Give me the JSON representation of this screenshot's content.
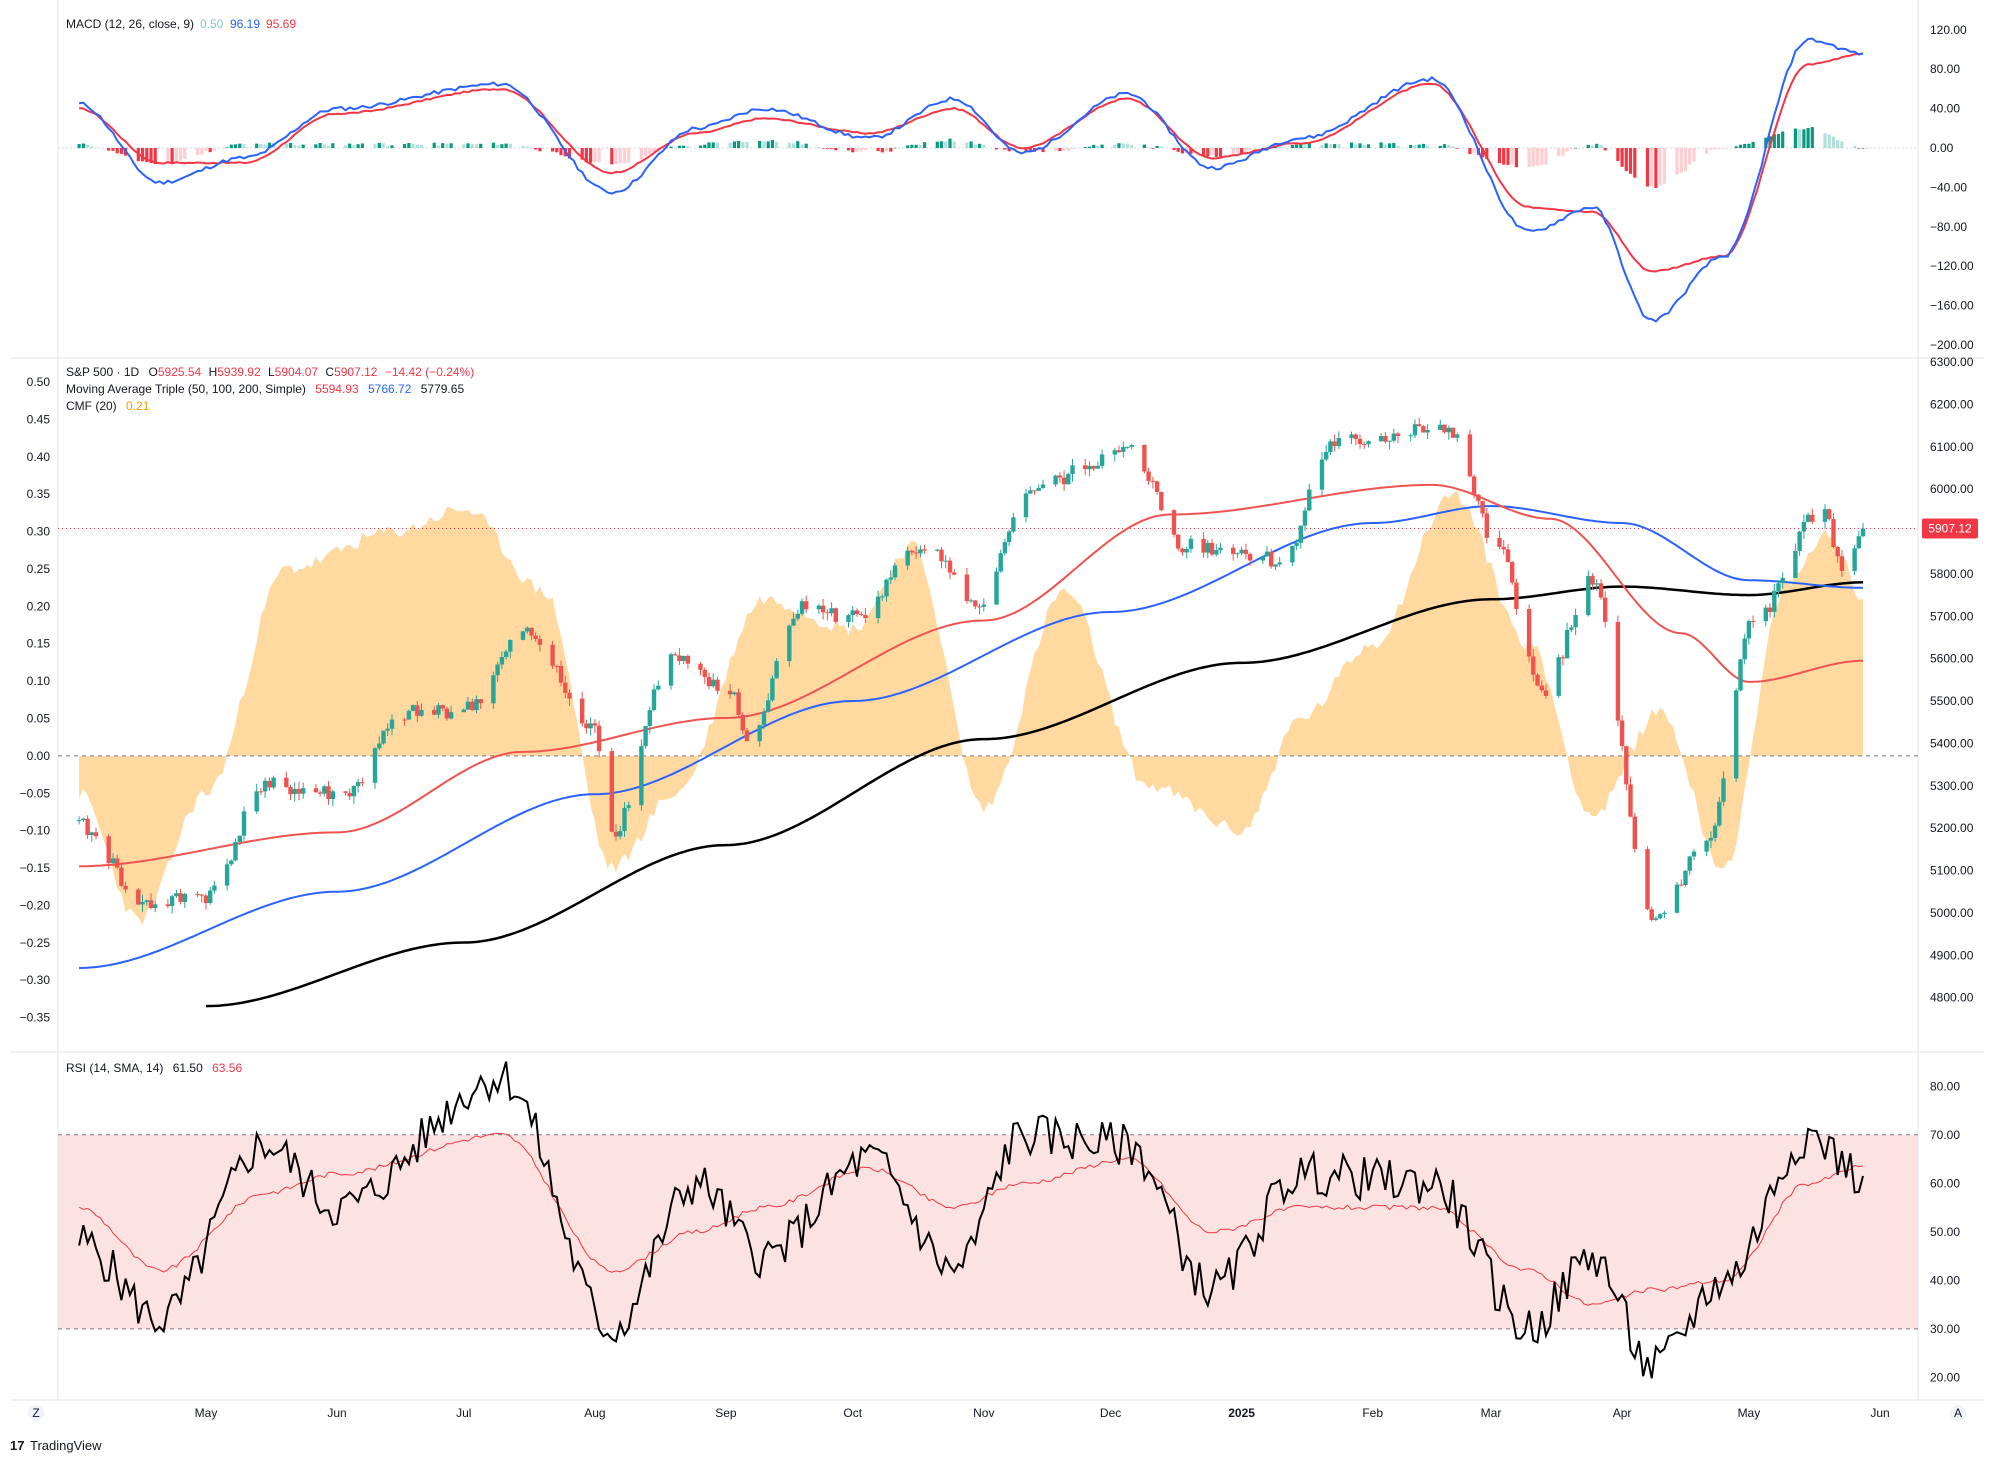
{
  "app": {
    "brand": "TradingView",
    "brand_mark": "17"
  },
  "colors": {
    "up": "#26a69a",
    "down": "#ef5350",
    "blue": "#2962ff",
    "ma200": "#000000",
    "macd_line": "#2962ff",
    "signal_line": "#f23645",
    "hist_pos_strong": "#089981",
    "hist_pos_weak": "#b2dfdb",
    "hist_neg_strong": "#f23645",
    "hist_neg_weak": "#ffcdd2",
    "cmf_fill": "#ffcc80",
    "rsi_fill": "#fde2e2",
    "rsi_line": "#000000",
    "rsi_ma": "#f23645"
  },
  "x_axis": {
    "labels": [
      "May",
      "Jun",
      "Jul",
      "Aug",
      "Sep",
      "Oct",
      "Nov",
      "Dec",
      "2025",
      "Feb",
      "Mar",
      "Apr",
      "May",
      "Jun"
    ],
    "year_label": "2025",
    "left_corner": "Z",
    "right_corner": "A"
  },
  "macd": {
    "title": "MACD (12, 26, close, 9)",
    "val_hist": "0.50",
    "val_macd": "96.19",
    "val_signal": "95.69",
    "ticks": [
      "120.00",
      "80.00",
      "40.00",
      "0.00",
      "−40.00",
      "−80.00",
      "−120.00",
      "−160.00",
      "−200.00"
    ]
  },
  "price": {
    "symbol_line": "S&P 500 · 1D",
    "o_lbl": "O",
    "o": "5925.54",
    "h_lbl": "H",
    "h": "5939.92",
    "l_lbl": "L",
    "l": "5904.07",
    "c_lbl": "C",
    "c": "5907.12",
    "chg": "−14.42 (−0.24%)",
    "ma_title": "Moving Average Triple (50, 100, 200, Simple)",
    "ma50": "5594.93",
    "ma100": "5766.72",
    "ma200": "5779.65",
    "cmf_title": "CMF (20)",
    "cmf_val": "0.21",
    "last_price_tag": "5907.12",
    "right_ticks": [
      "6300.00",
      "6200.00",
      "6100.00",
      "6000.00",
      "5900.00",
      "5800.00",
      "5700.00",
      "5600.00",
      "5500.00",
      "5400.00",
      "5300.00",
      "5200.00",
      "5100.00",
      "5000.00",
      "4900.00",
      "4800.00"
    ],
    "left_ticks": [
      "0.50",
      "0.45",
      "0.40",
      "0.35",
      "0.30",
      "0.25",
      "0.20",
      "0.15",
      "0.10",
      "0.05",
      "0.00",
      "−0.05",
      "−0.10",
      "−0.15",
      "−0.20",
      "−0.25",
      "−0.30",
      "−0.35"
    ]
  },
  "rsi": {
    "title": "RSI (14, SMA, 14)",
    "val": "61.50",
    "ma_val": "63.56",
    "ticks": [
      "80.00",
      "70.00",
      "60.00",
      "50.00",
      "40.00",
      "30.00",
      "20.00"
    ]
  },
  "chart_data": [
    {
      "type": "candlestick",
      "name": "S&P 500, 1D",
      "x": [
        "2024-04-01",
        "2024-04-17",
        "2024-05-01",
        "2024-05-15",
        "2024-06-03",
        "2024-06-17",
        "2024-07-01",
        "2024-07-16",
        "2024-08-01",
        "2024-08-05",
        "2024-08-19",
        "2024-09-03",
        "2024-09-06",
        "2024-09-19",
        "2024-10-01",
        "2024-10-18",
        "2024-10-31",
        "2024-11-11",
        "2024-12-06",
        "2024-12-18",
        "2025-01-02",
        "2025-01-10",
        "2025-01-23",
        "2025-02-19",
        "2025-03-03",
        "2025-03-13",
        "2025-03-25",
        "2025-04-08",
        "2025-04-21",
        "2025-05-02",
        "2025-05-19",
        "2025-05-23",
        "2025-05-28"
      ],
      "close": [
        5205,
        5020,
        5040,
        5300,
        5280,
        5470,
        5480,
        5660,
        5430,
        5190,
        5600,
        5510,
        5400,
        5720,
        5700,
        5865,
        5710,
        6000,
        6090,
        5870,
        5850,
        5830,
        6110,
        6144,
        5850,
        5520,
        5780,
        4980,
        5160,
        5686,
        5960,
        5800,
        5907
      ],
      "open": [
        5250,
        5050,
        5010,
        5290,
        5270,
        5470,
        5475,
        5670,
        5520,
        5220,
        5590,
        5630,
        5520,
        5710,
        5750,
        5860,
        5780,
        5990,
        6090,
        6050,
        5880,
        5900,
        6100,
        6130,
        5960,
        5600,
        5780,
        5050,
        5220,
        5640,
        5960,
        5840,
        5925
      ],
      "moving_averages": {
        "ma50": {
          "x": [
            "2024-04-01",
            "2024-06-01",
            "2024-07-15",
            "2024-09-01",
            "2024-11-01",
            "2024-12-15",
            "2025-02-15",
            "2025-03-15",
            "2025-04-15",
            "2025-05-01",
            "2025-05-28"
          ],
          "y": [
            5110,
            5190,
            5380,
            5460,
            5690,
            5940,
            6010,
            5930,
            5660,
            5545,
            5595
          ]
        },
        "ma100": {
          "x": [
            "2024-04-01",
            "2024-06-01",
            "2024-08-01",
            "2024-10-01",
            "2024-12-01",
            "2025-02-01",
            "2025-03-01",
            "2025-04-01",
            "2025-05-01",
            "2025-05-28"
          ],
          "y": [
            4870,
            5050,
            5280,
            5500,
            5710,
            5920,
            5960,
            5920,
            5785,
            5767
          ]
        },
        "ma200": {
          "x": [
            "2024-05-01",
            "2024-07-01",
            "2024-09-01",
            "2024-11-01",
            "2025-01-01",
            "2025-03-01",
            "2025-04-01",
            "2025-05-01",
            "2025-05-28"
          ],
          "y": [
            4780,
            4930,
            5160,
            5410,
            5590,
            5740,
            5770,
            5750,
            5780
          ]
        }
      },
      "cmf": {
        "x": [
          "2024-04-01",
          "2024-04-15",
          "2024-05-01",
          "2024-05-20",
          "2024-06-15",
          "2024-07-01",
          "2024-07-20",
          "2024-08-05",
          "2024-08-20",
          "2024-09-10",
          "2024-10-01",
          "2024-10-15",
          "2024-11-01",
          "2024-11-20",
          "2024-12-10",
          "2025-01-01",
          "2025-01-15",
          "2025-02-01",
          "2025-02-20",
          "2025-03-10",
          "2025-03-25",
          "2025-04-10",
          "2025-04-25",
          "2025-05-10",
          "2025-05-20",
          "2025-05-28"
        ],
        "y": [
          -0.05,
          -0.22,
          -0.05,
          0.25,
          0.3,
          0.33,
          0.22,
          -0.15,
          -0.05,
          0.21,
          0.17,
          0.28,
          -0.07,
          0.22,
          -0.04,
          -0.1,
          0.05,
          0.15,
          0.35,
          0.15,
          -0.08,
          0.06,
          -0.15,
          0.23,
          0.3,
          0.21
        ]
      },
      "ylim_price": [
        4700,
        6300
      ],
      "ylim_cmf": [
        -0.38,
        0.5
      ]
    },
    {
      "type": "line",
      "name": "MACD (12, 26, close, 9)",
      "x": [
        "2024-04-01",
        "2024-04-20",
        "2024-05-10",
        "2024-06-01",
        "2024-07-10",
        "2024-08-05",
        "2024-08-25",
        "2024-09-10",
        "2024-10-05",
        "2024-10-25",
        "2024-11-10",
        "2024-12-05",
        "2024-12-25",
        "2025-01-15",
        "2025-02-15",
        "2025-03-10",
        "2025-03-25",
        "2025-04-08",
        "2025-04-25",
        "2025-05-15",
        "2025-05-28"
      ],
      "series": [
        {
          "name": "MACD",
          "values": [
            45,
            -35,
            -10,
            40,
            65,
            -45,
            20,
            40,
            10,
            50,
            -5,
            55,
            -20,
            10,
            70,
            -85,
            -60,
            -175,
            -110,
            110,
            96
          ]
        },
        {
          "name": "Signal",
          "values": [
            40,
            -15,
            -15,
            35,
            60,
            -25,
            15,
            30,
            15,
            40,
            0,
            50,
            -10,
            5,
            65,
            -60,
            -65,
            -125,
            -110,
            85,
            96
          ]
        }
      ],
      "hist_values": [
        5,
        -20,
        5,
        5,
        5,
        -20,
        5,
        10,
        -5,
        10,
        -5,
        5,
        -10,
        5,
        5,
        -25,
        5,
        -50,
        0,
        25,
        0.5
      ],
      "ylim": [
        -200,
        130
      ]
    },
    {
      "type": "line",
      "name": "RSI (14, SMA, 14)",
      "x": [
        "2024-04-01",
        "2024-04-20",
        "2024-05-15",
        "2024-06-01",
        "2024-07-10",
        "2024-08-05",
        "2024-08-25",
        "2024-09-10",
        "2024-10-05",
        "2024-10-25",
        "2024-11-10",
        "2024-12-05",
        "2024-12-25",
        "2025-01-15",
        "2025-02-15",
        "2025-03-10",
        "2025-03-25",
        "2025-04-08",
        "2025-04-25",
        "2025-05-15",
        "2025-05-28"
      ],
      "series": [
        {
          "name": "RSI",
          "values": [
            48,
            32,
            68,
            55,
            82,
            30,
            60,
            45,
            65,
            42,
            70,
            68,
            38,
            62,
            60,
            30,
            45,
            22,
            40,
            70,
            61.5
          ]
        },
        {
          "name": "RSI MA",
          "values": [
            55,
            42,
            58,
            62,
            70,
            42,
            50,
            55,
            63,
            55,
            60,
            65,
            50,
            55,
            55,
            42,
            35,
            38,
            40,
            60,
            63.56
          ]
        }
      ],
      "bands": [
        30,
        70
      ],
      "ylim": [
        17,
        85
      ]
    }
  ]
}
